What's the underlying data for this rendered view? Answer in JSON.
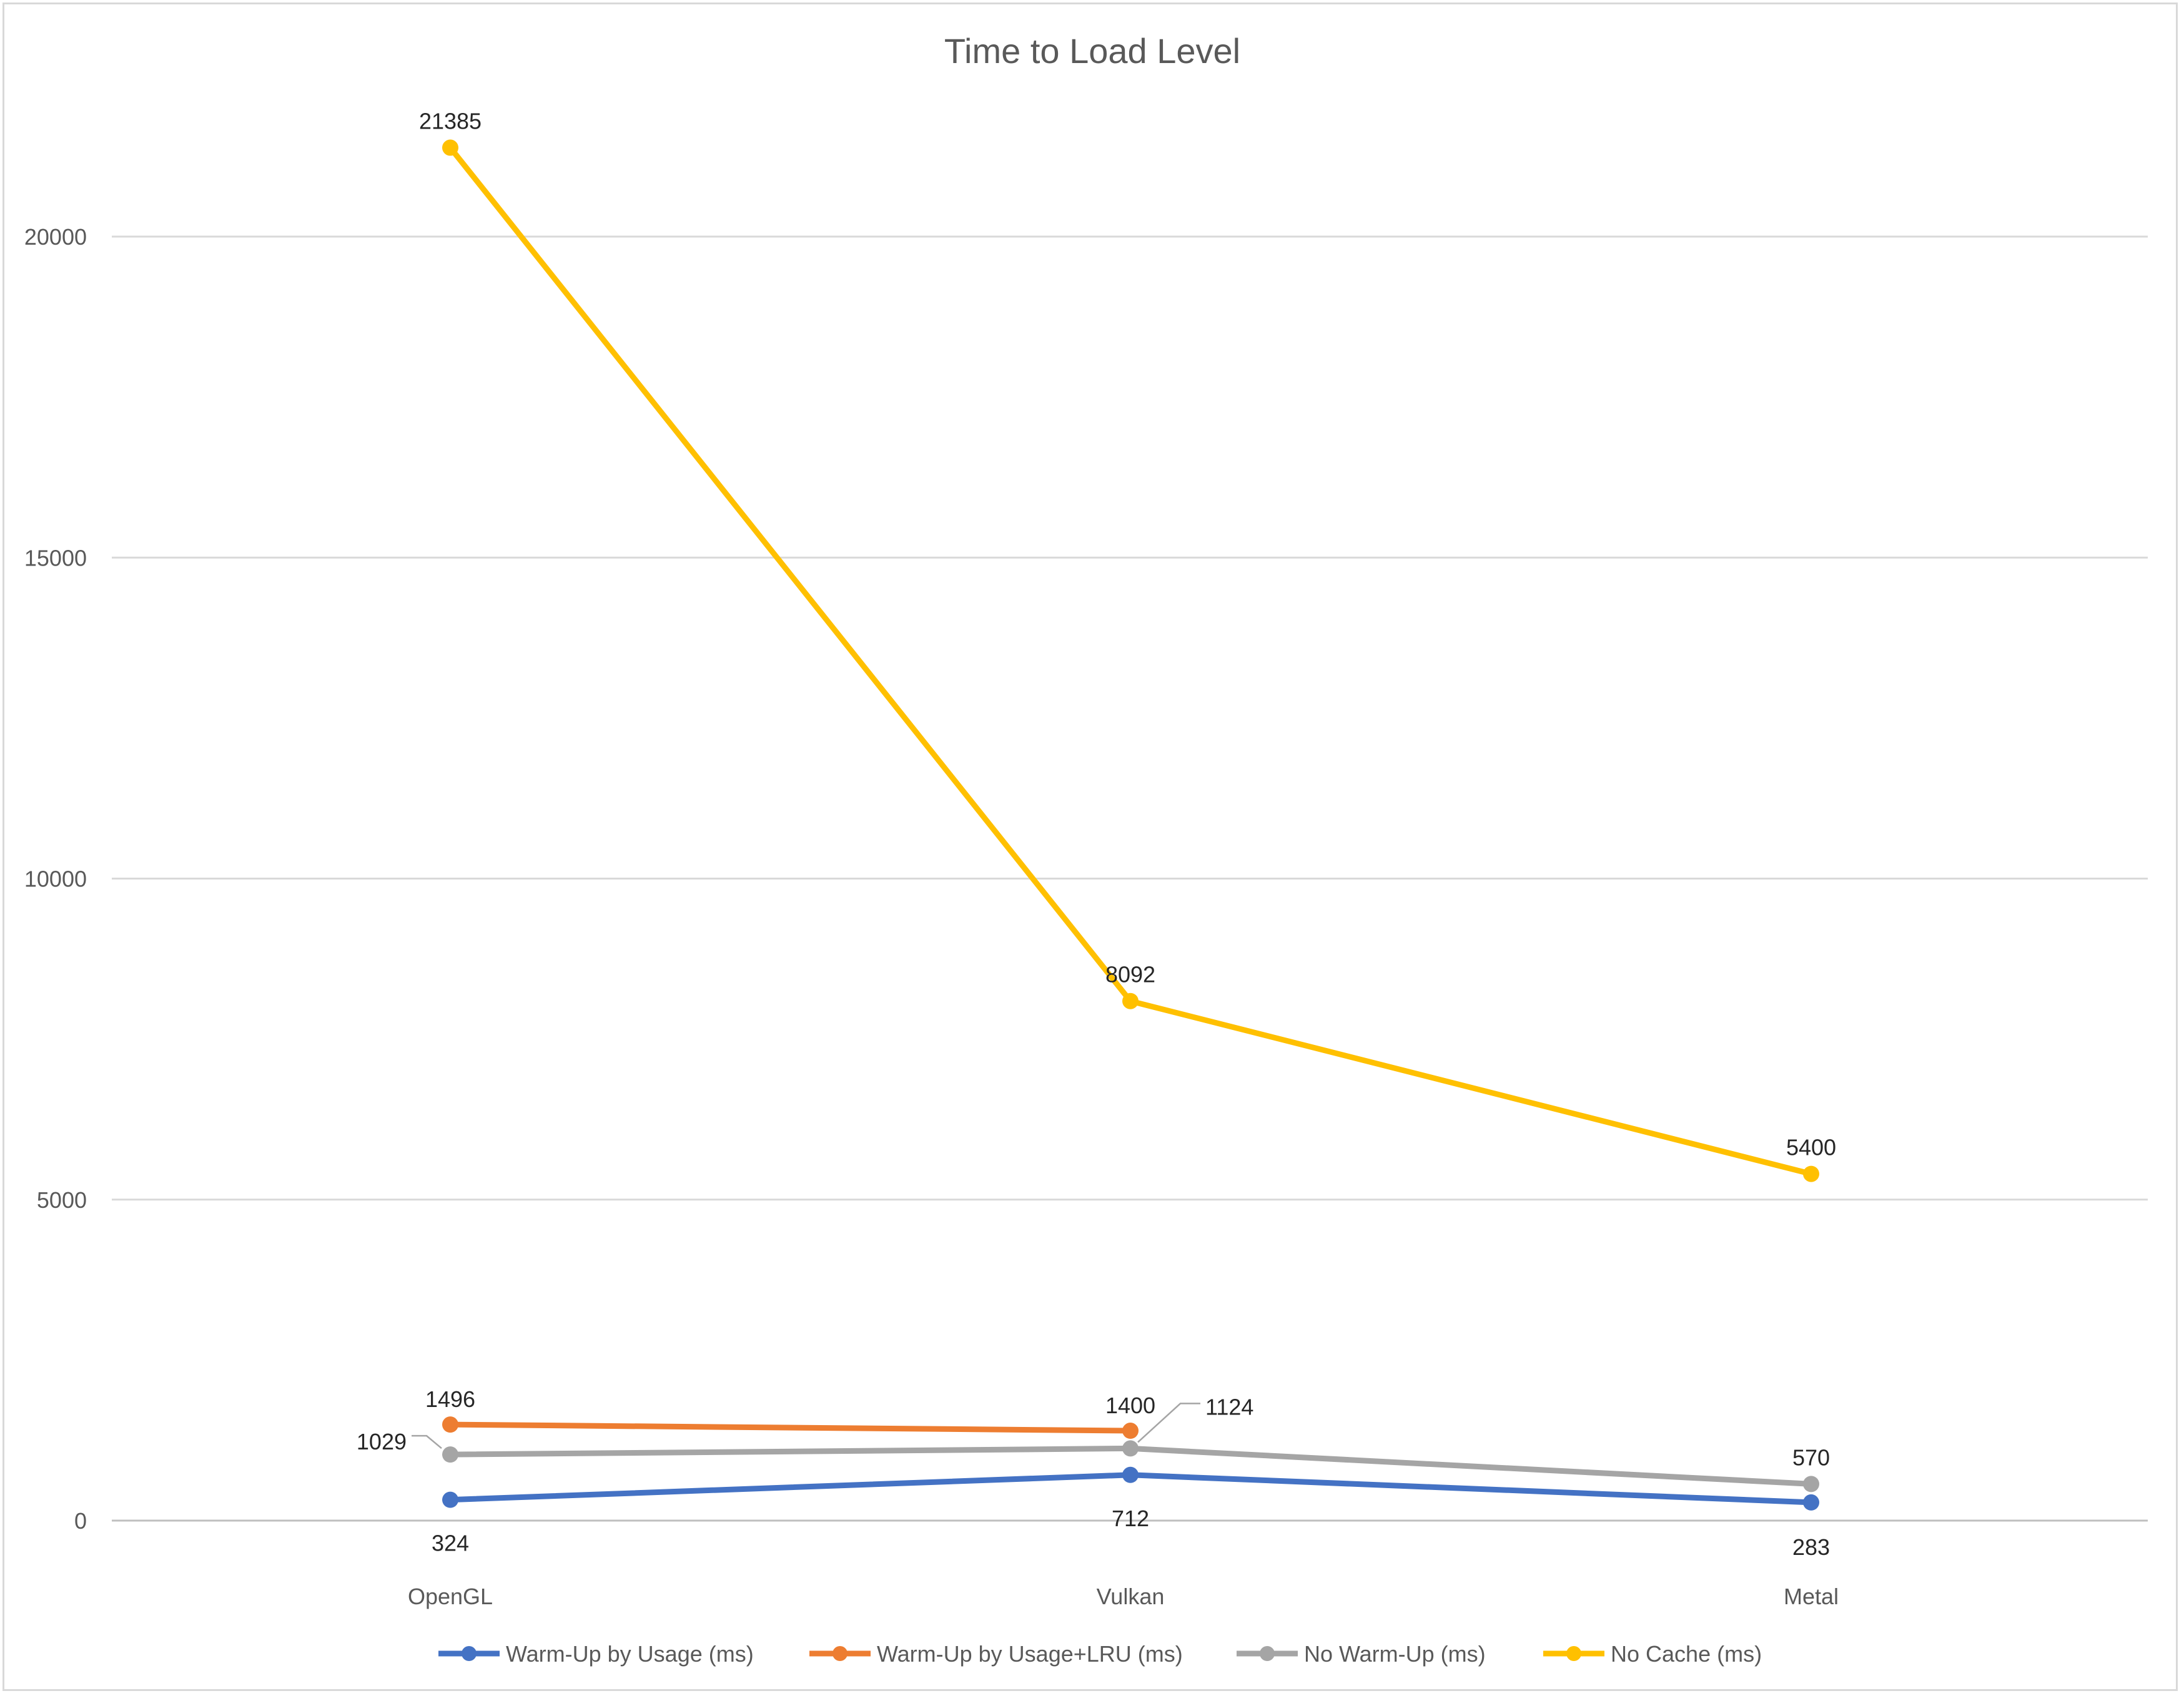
{
  "chart_data": {
    "type": "line",
    "title": "Time to Load Level",
    "xlabel": "",
    "ylabel": "",
    "categories": [
      "OpenGL",
      "Vulkan",
      "Metal"
    ],
    "ylim": [
      0,
      22000
    ],
    "yticks": [
      0,
      5000,
      10000,
      15000,
      20000
    ],
    "grid": true,
    "legend": "bottom",
    "series": [
      {
        "name": "Warm-Up by Usage (ms)",
        "color": "#4472c4",
        "values": [
          324,
          712,
          283
        ],
        "labels": [
          "324",
          "712",
          "283"
        ]
      },
      {
        "name": "Warm-Up by Usage+LRU (ms)",
        "color": "#ed7d31",
        "values": [
          1496,
          1400,
          null
        ],
        "labels": [
          "1496",
          "1400",
          null
        ]
      },
      {
        "name": "No Warm-Up (ms)",
        "color": "#a5a5a5",
        "values": [
          1029,
          1124,
          570
        ],
        "labels": [
          "1029",
          "1124",
          "570"
        ]
      },
      {
        "name": "No Cache (ms)",
        "color": "#ffc000",
        "values": [
          21385,
          8092,
          5400
        ],
        "labels": [
          "21385",
          "8092",
          "5400"
        ]
      }
    ]
  }
}
